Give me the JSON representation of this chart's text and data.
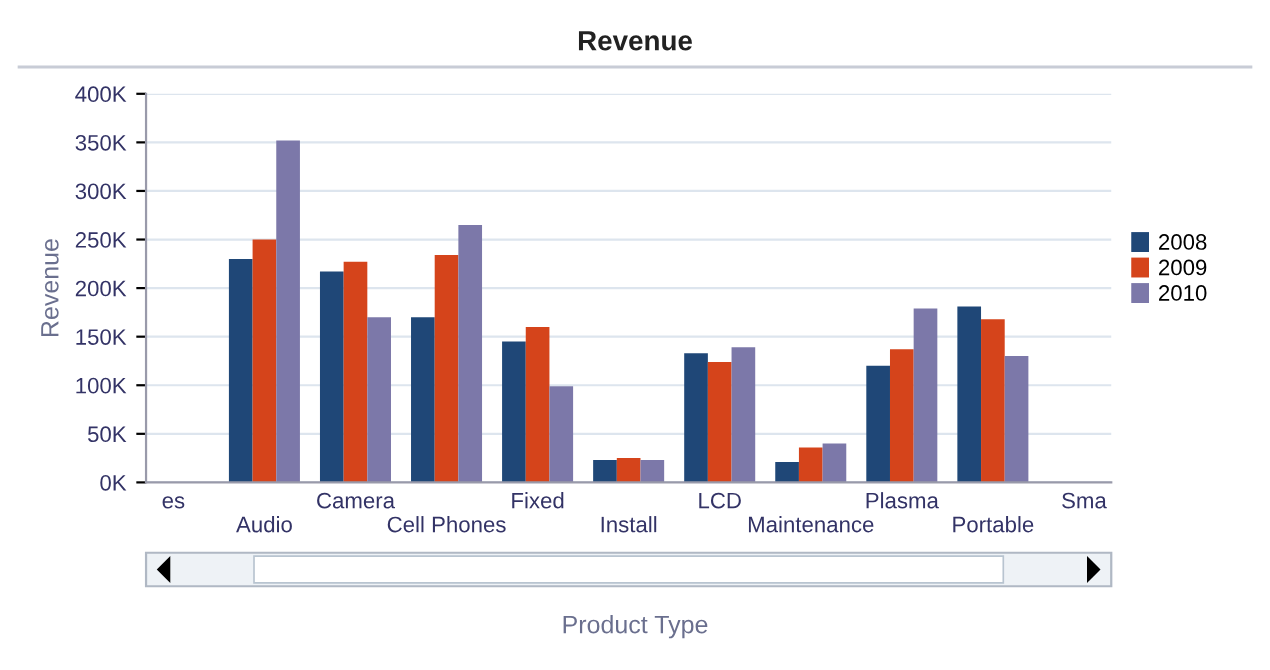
{
  "chart_data": {
    "type": "bar",
    "title": "Revenue",
    "xlabel": "Product Type",
    "ylabel": "Revenue",
    "categories": [
      "es",
      "Audio",
      "Camera",
      "Cell Phones",
      "Fixed",
      "Install",
      "LCD",
      "Maintenance",
      "Plasma",
      "Portable",
      "Sma"
    ],
    "series": [
      {
        "name": "2008",
        "color": "#1f4777",
        "values": [
          null,
          230,
          217,
          170,
          145,
          23,
          133,
          21,
          120,
          181,
          null
        ]
      },
      {
        "name": "2009",
        "color": "#d5441b",
        "values": [
          null,
          250,
          227,
          234,
          160,
          25,
          124,
          36,
          137,
          168,
          null
        ]
      },
      {
        "name": "2010",
        "color": "#7c78a9",
        "values": [
          null,
          352,
          170,
          265,
          99,
          23,
          139,
          40,
          179,
          130,
          null
        ]
      }
    ],
    "ylim": [
      0,
      400
    ],
    "yticks": [
      {
        "value": 0,
        "label": "0K"
      },
      {
        "value": 50,
        "label": "50K"
      },
      {
        "value": 100,
        "label": "100K"
      },
      {
        "value": 150,
        "label": "150K"
      },
      {
        "value": 200,
        "label": "200K"
      },
      {
        "value": 250,
        "label": "250K"
      },
      {
        "value": 300,
        "label": "300K"
      },
      {
        "value": 350,
        "label": "350K"
      },
      {
        "value": 400,
        "label": "400K"
      }
    ],
    "grid": "y",
    "legend": "right"
  }
}
